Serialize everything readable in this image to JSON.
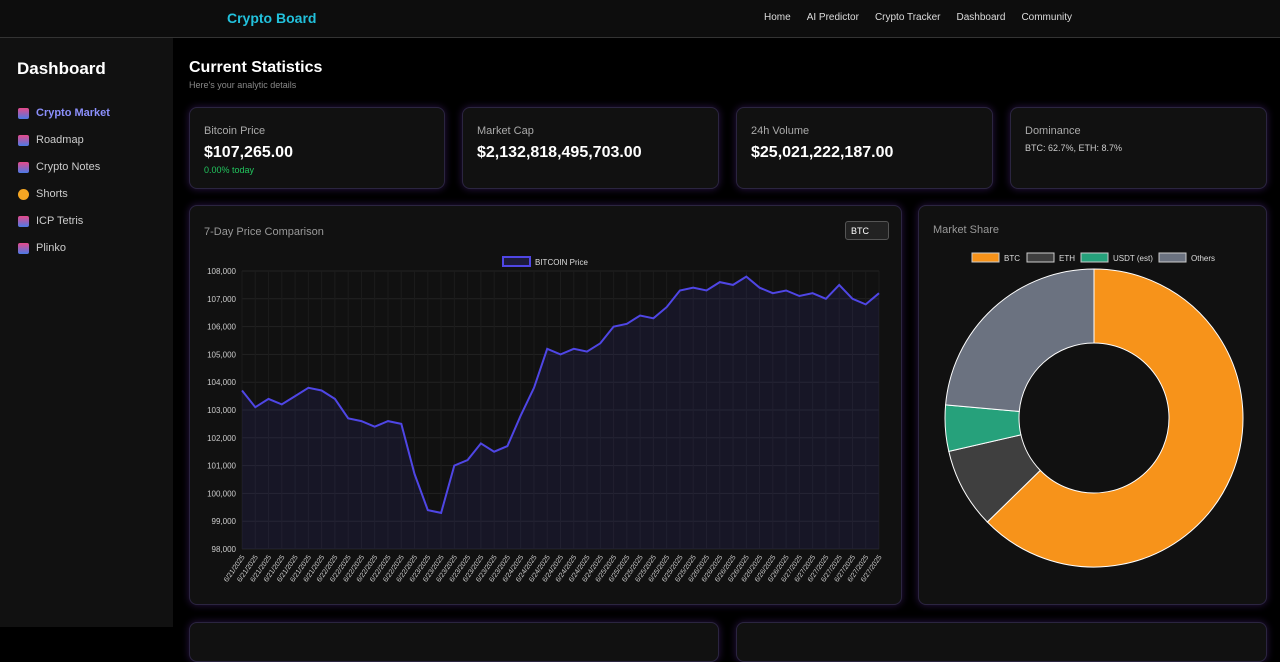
{
  "nav": {
    "brand": "Crypto Board",
    "links": [
      "Home",
      "AI Predictor",
      "Crypto Tracker",
      "Dashboard",
      "Community"
    ]
  },
  "sidebar": {
    "title": "Dashboard",
    "items": [
      "Crypto Market",
      "Roadmap",
      "Crypto Notes",
      "Shorts",
      "ICP Tetris",
      "Plinko"
    ]
  },
  "header": {
    "title": "Current Statistics",
    "subtitle": "Here's your analytic details"
  },
  "stats": [
    {
      "label": "Bitcoin Price",
      "value": "$107,265.00",
      "change": "0.00% today"
    },
    {
      "label": "Market Cap",
      "value": "$2,132,818,495,703.00"
    },
    {
      "label": "24h Volume",
      "value": "$25,021,222,187.00"
    },
    {
      "label": "Dominance",
      "detail": "BTC: 62.7%, ETH: 8.7%"
    }
  ],
  "chart_data": [
    {
      "type": "line",
      "title": "7-Day Price Comparison",
      "selector": "BTC",
      "categories": [
        "6/21/2025",
        "6/21/2025",
        "6/21/2025",
        "6/21/2025",
        "6/21/2025",
        "6/21/2025",
        "6/21/2025",
        "6/22/2025",
        "6/22/2025",
        "6/22/2025",
        "6/22/2025",
        "6/22/2025",
        "6/22/2025",
        "6/22/2025",
        "6/23/2025",
        "6/23/2025",
        "6/23/2025",
        "6/23/2025",
        "6/23/2025",
        "6/23/2025",
        "6/23/2025",
        "6/24/2025",
        "6/24/2025",
        "6/24/2025",
        "6/24/2025",
        "6/24/2025",
        "6/24/2025",
        "6/24/2025",
        "6/25/2025",
        "6/25/2025",
        "6/25/2025",
        "6/25/2025",
        "6/25/2025",
        "6/25/2025",
        "6/25/2025",
        "6/26/2025",
        "6/26/2025",
        "6/26/2025",
        "6/26/2025",
        "6/26/2025",
        "6/26/2025",
        "6/26/2025",
        "6/27/2025",
        "6/27/2025",
        "6/27/2025",
        "6/27/2025",
        "6/27/2025",
        "6/27/2025",
        "6/27/2025"
      ],
      "series": [
        {
          "name": "BITCOIN Price",
          "color": "#4f46e5",
          "values": [
            103700,
            103100,
            103400,
            103200,
            103500,
            103800,
            103700,
            103400,
            102700,
            102600,
            102400,
            102600,
            102500,
            100700,
            99400,
            99300,
            101000,
            101200,
            101800,
            101500,
            101700,
            102800,
            103800,
            105200,
            105000,
            105200,
            105100,
            105400,
            106000,
            106100,
            106400,
            106300,
            106700,
            107300,
            107400,
            107300,
            107600,
            107500,
            107800,
            107400,
            107200,
            107300,
            107100,
            107200,
            107000,
            107500,
            107000,
            106800,
            107200
          ]
        }
      ],
      "ylim": [
        98000,
        108000
      ],
      "yticks": [
        {
          "value": 98000,
          "label": "98,000"
        },
        {
          "value": 99000,
          "label": "99,000"
        },
        {
          "value": 100000,
          "label": "100,000"
        },
        {
          "value": 101000,
          "label": "101,000"
        },
        {
          "value": 102000,
          "label": "102,000"
        },
        {
          "value": 103000,
          "label": "103,000"
        },
        {
          "value": 104000,
          "label": "104,000"
        },
        {
          "value": 105000,
          "label": "105,000"
        },
        {
          "value": 106000,
          "label": "106,000"
        },
        {
          "value": 107000,
          "label": "107,000"
        },
        {
          "value": 108000,
          "label": "108,000"
        }
      ],
      "grid": true,
      "legend": "top"
    },
    {
      "type": "doughnut",
      "title": "Market Share",
      "categories": [
        "BTC",
        "ETH",
        "USDT (est)",
        "Others"
      ],
      "values": [
        62.7,
        8.7,
        5,
        23.6
      ],
      "colors": [
        "#f7931a",
        "#3f3f3f",
        "#26a17b",
        "#6b7280"
      ],
      "legend": "top"
    }
  ]
}
